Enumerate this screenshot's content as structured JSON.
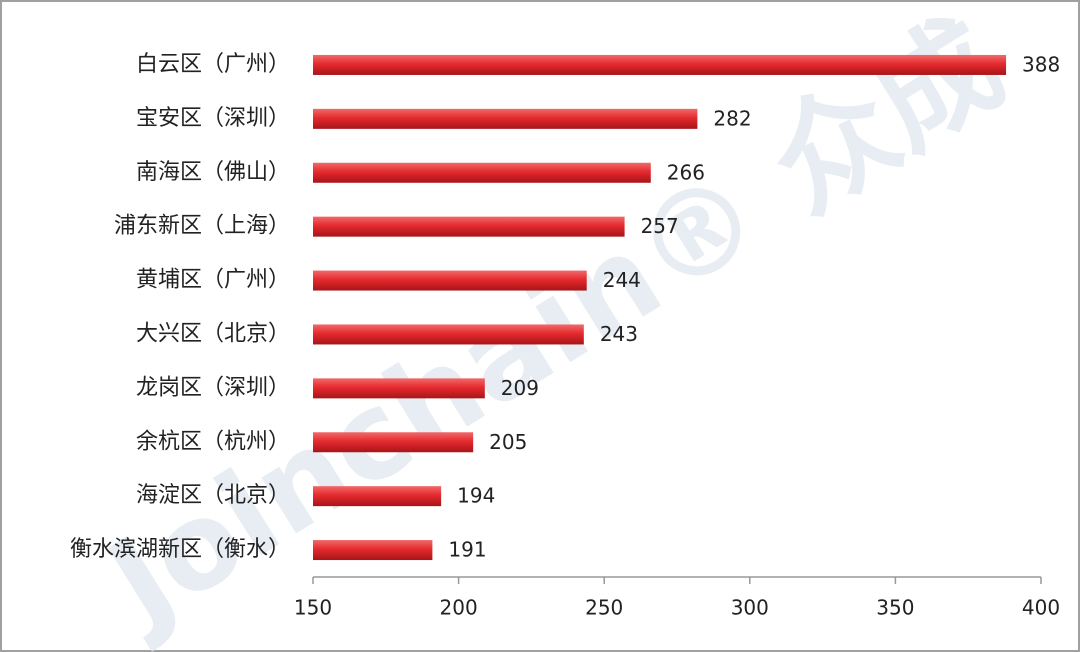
{
  "chart_data": {
    "type": "bar",
    "orientation": "horizontal",
    "categories": [
      "白云区（广州）",
      "宝安区（深圳）",
      "南海区（佛山）",
      "浦东新区（上海）",
      "黄埔区（广州）",
      "大兴区（北京）",
      "龙岗区（深圳）",
      "余杭区（杭州）",
      "海淀区（北京）",
      "衡水滨湖新区（衡水）"
    ],
    "values": [
      388,
      282,
      266,
      257,
      244,
      243,
      209,
      205,
      194,
      191
    ],
    "color": "#d9262b",
    "xlim": [
      150,
      400
    ],
    "xticks": [
      150,
      200,
      250,
      300,
      350,
      400
    ],
    "watermark": "Joinchain® 众成"
  }
}
